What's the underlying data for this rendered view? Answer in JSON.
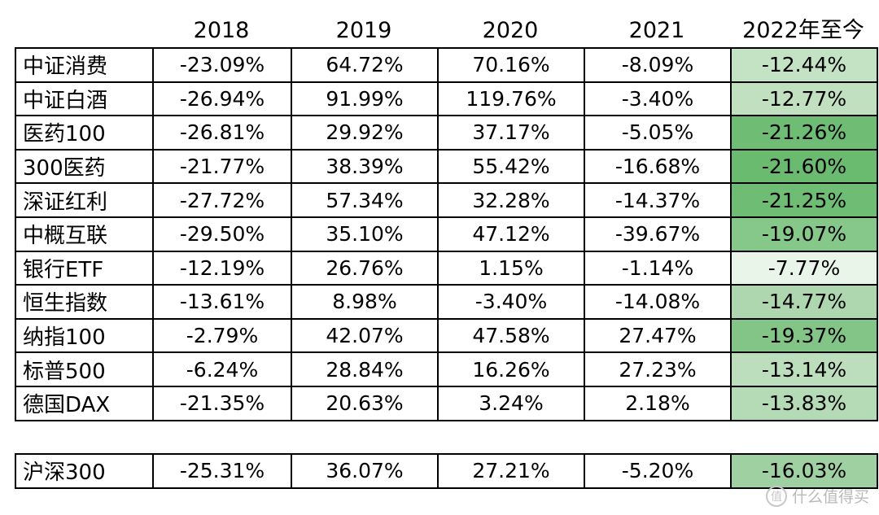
{
  "headers": [
    "2018",
    "2019",
    "2020",
    "2021",
    "2022年至今"
  ],
  "rows": [
    {
      "name": "中证消费",
      "v2018": "-23.09%",
      "v2019": "64.72%",
      "v2020": "70.16%",
      "v2021": "-8.09%",
      "v2022": "-12.44%",
      "color": "#c4e2c4"
    },
    {
      "name": "中证白酒",
      "v2018": "-26.94%",
      "v2019": "91.99%",
      "v2020": "119.76%",
      "v2021": "-3.40%",
      "v2022": "-12.77%",
      "color": "#c0e0c0"
    },
    {
      "name": "医药100",
      "v2018": "-26.81%",
      "v2019": "29.92%",
      "v2020": "37.17%",
      "v2021": "-5.05%",
      "v2022": "-21.26%",
      "color": "#6fbc74"
    },
    {
      "name": "300医药",
      "v2018": "-21.77%",
      "v2019": "38.39%",
      "v2020": "55.42%",
      "v2021": "-16.68%",
      "v2022": "-21.60%",
      "color": "#6aba70"
    },
    {
      "name": "深证红利",
      "v2018": "-27.72%",
      "v2019": "57.34%",
      "v2020": "32.28%",
      "v2021": "-14.37%",
      "v2022": "-21.25%",
      "color": "#6fbc74"
    },
    {
      "name": "中概互联",
      "v2018": "-29.50%",
      "v2019": "35.10%",
      "v2020": "47.12%",
      "v2021": "-39.67%",
      "v2022": "-19.07%",
      "color": "#86c78a"
    },
    {
      "name": "银行ETF",
      "v2018": "-12.19%",
      "v2019": "26.76%",
      "v2020": "1.15%",
      "v2021": "-1.14%",
      "v2022": "-7.77%",
      "color": "#eaf5ea"
    },
    {
      "name": "恒生指数",
      "v2018": "-13.61%",
      "v2019": "8.98%",
      "v2020": "-3.40%",
      "v2021": "-14.08%",
      "v2022": "-14.77%",
      "color": "#aed7b0"
    },
    {
      "name": "纳指100",
      "v2018": "-2.79%",
      "v2019": "42.07%",
      "v2020": "47.58%",
      "v2021": "27.47%",
      "v2022": "-19.37%",
      "color": "#83c587"
    },
    {
      "name": "标普500",
      "v2018": "-6.24%",
      "v2019": "28.84%",
      "v2020": "16.26%",
      "v2021": "27.23%",
      "v2022": "-13.14%",
      "color": "#bcdebd"
    },
    {
      "name": "德国DAX",
      "v2018": "-21.35%",
      "v2019": "20.63%",
      "v2020": "3.24%",
      "v2021": "2.18%",
      "v2022": "-13.83%",
      "color": "#b4dab6"
    }
  ],
  "benchmark": {
    "name": "沪深300",
    "v2018": "-25.31%",
    "v2019": "36.07%",
    "v2020": "27.21%",
    "v2021": "-5.20%",
    "v2022": "-16.03%",
    "color": "#9fd0a2"
  },
  "watermark": {
    "text": "什么值得买",
    "logo": "值"
  }
}
